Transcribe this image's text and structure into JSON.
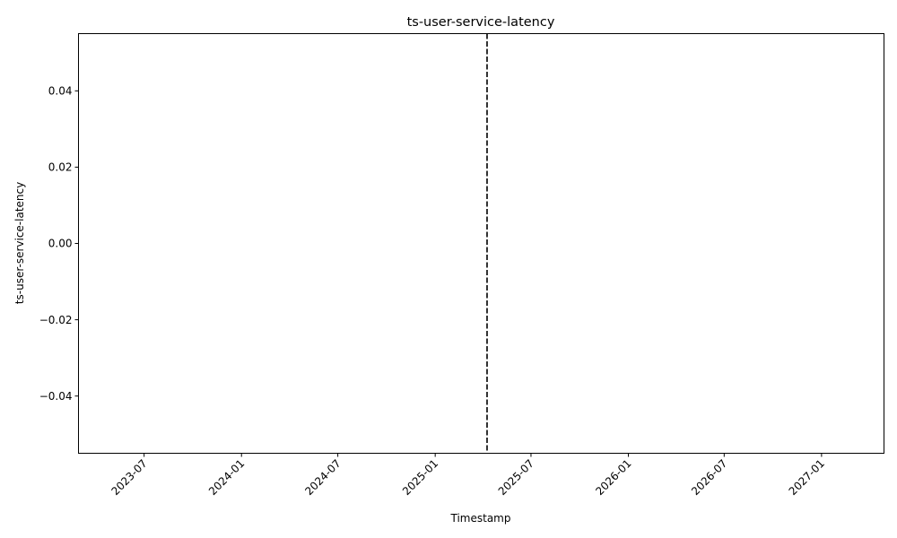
{
  "chart_data": {
    "type": "line",
    "title": "ts-user-service-latency",
    "xlabel": "Timestamp",
    "ylabel": "ts-user-service-latency",
    "xlim": [
      "2023-02-27",
      "2027-04-29"
    ],
    "ylim": [
      -0.055,
      0.055
    ],
    "x_ticks": [
      "2023-07",
      "2024-01",
      "2024-07",
      "2025-01",
      "2025-07",
      "2026-01",
      "2026-07",
      "2027-01"
    ],
    "y_ticks": [
      0.04,
      0.02,
      0.0,
      -0.02,
      -0.04
    ],
    "y_tick_labels": [
      "0.04",
      "0.02",
      "0.00",
      "−0.02",
      "−0.04"
    ],
    "series": [],
    "vlines": [
      {
        "x": "2025-04-09",
        "style": "dashed",
        "color": "#000000"
      }
    ],
    "grid": false,
    "legend": false
  }
}
